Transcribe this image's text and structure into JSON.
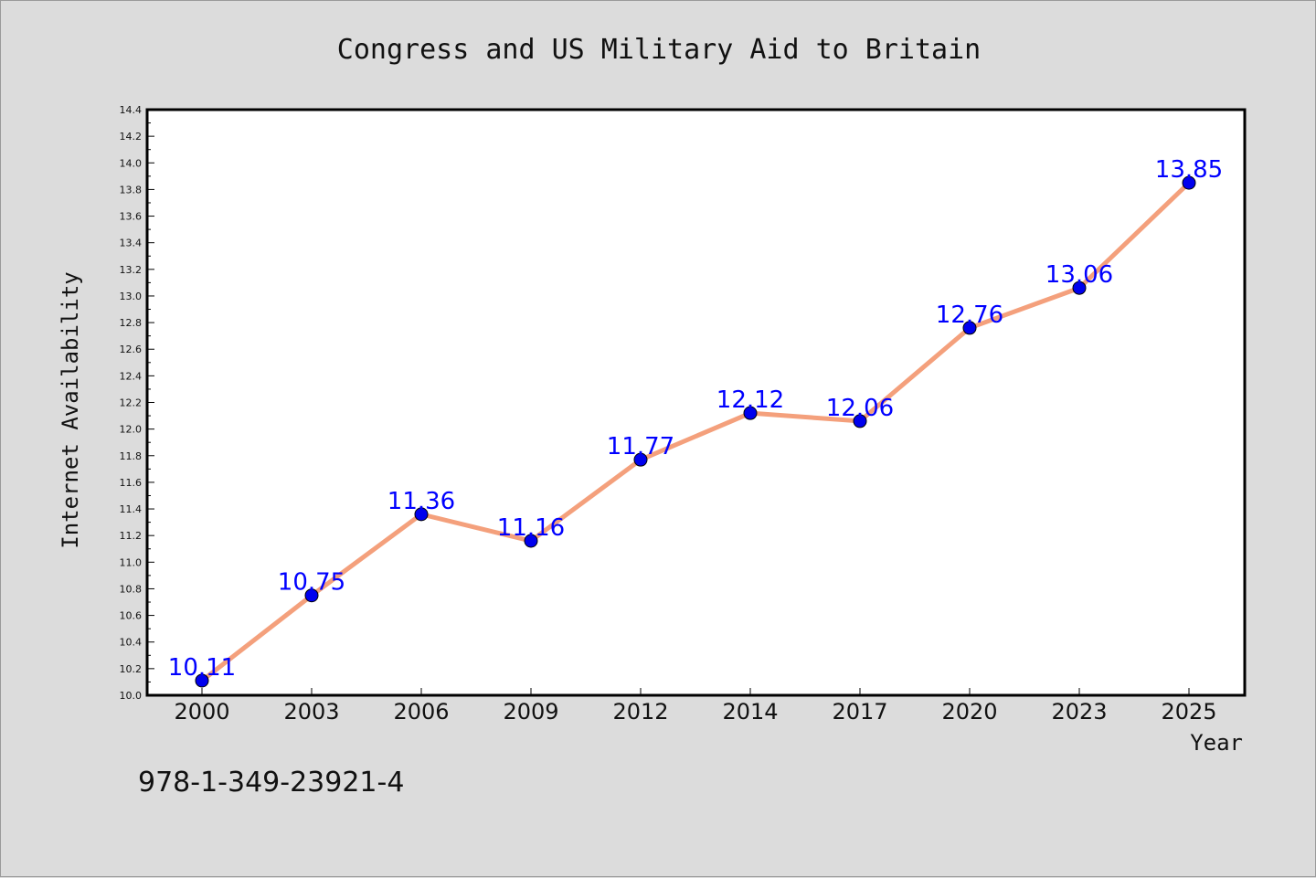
{
  "chart_data": {
    "type": "line",
    "title": "Congress and US Military Aid to Britain",
    "xlabel": "Year",
    "ylabel": "Internet Availability",
    "categories": [
      "2000",
      "2003",
      "2006",
      "2009",
      "2012",
      "2014",
      "2017",
      "2020",
      "2023",
      "2025"
    ],
    "series": [
      {
        "values": [
          10.11,
          10.75,
          11.36,
          11.16,
          11.77,
          12.12,
          12.06,
          12.76,
          13.06,
          13.85
        ]
      }
    ],
    "data_labels": [
      "10.11",
      "10.75",
      "11.36",
      "11.16",
      "11.77",
      "12.12",
      "12.06",
      "12.76",
      "13.06",
      "13.85"
    ],
    "ylim": [
      10.0,
      14.4
    ],
    "y_ticks": [
      "10.0",
      "10.2",
      "10.4",
      "10.6",
      "10.8",
      "11.0",
      "11.2",
      "11.4",
      "11.6",
      "11.8",
      "12.0",
      "12.2",
      "12.4",
      "12.6",
      "12.8",
      "13.0",
      "13.2",
      "13.4",
      "13.6",
      "13.8",
      "14.0",
      "14.2",
      "14.4"
    ],
    "grid": false,
    "colors": {
      "line": "#f4a07c",
      "marker": "#0000ee",
      "label": "#0000ff"
    }
  },
  "footer": {
    "isbn": "978-1-349-23921-4"
  }
}
